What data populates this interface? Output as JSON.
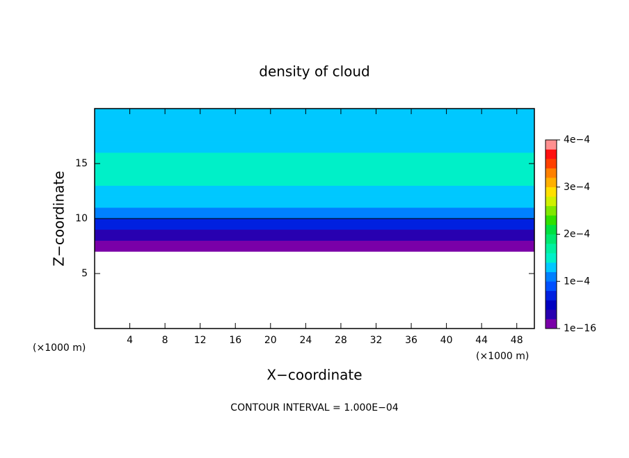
{
  "chart_data": {
    "type": "contour",
    "title": "density of cloud",
    "x_label": "X−coordinate",
    "y_label": "Z−coordinate",
    "unit_labels": [
      "(×1000 m)",
      "(×1000 m)"
    ],
    "annotation": "CONTOUR INTERVAL = 1.000E−04",
    "xlim": [
      0,
      50
    ],
    "xticks": [
      4,
      8,
      12,
      16,
      20,
      24,
      28,
      32,
      36,
      40,
      44,
      48
    ],
    "ylim": [
      0,
      20
    ],
    "yticks": [
      5,
      10,
      15
    ],
    "z_bins": [
      7,
      8,
      9,
      10,
      11,
      12,
      13,
      14,
      15,
      16,
      17,
      18,
      19,
      20
    ],
    "values": [
      2e-05,
      4e-05,
      8e-05,
      0.00011,
      0.000125,
      0.00014,
      0.00015,
      0.00015,
      0.00015,
      0.00014,
      0.00013,
      0.00013,
      0.00013
    ],
    "contour_line_color": "#000000",
    "colorbar": {
      "lim": [
        1e-16,
        0.0004
      ],
      "ticks": [
        {
          "value": 1e-16,
          "label": "1e−16"
        },
        {
          "value": 0.0001,
          "label": "1e−4"
        },
        {
          "value": 0.0002,
          "label": "2e−4"
        },
        {
          "value": 0.0003,
          "label": "3e−4"
        },
        {
          "value": 0.0004,
          "label": "4e−4"
        }
      ],
      "colors": [
        "#7a00a8",
        "#2800b0",
        "#0000c0",
        "#0020e0",
        "#0050ff",
        "#0080ff",
        "#00c8ff",
        "#00f0c8",
        "#00f0a0",
        "#00e870",
        "#00e040",
        "#30e000",
        "#80e800",
        "#d0f000",
        "#ffe000",
        "#ffb000",
        "#ff8000",
        "#ff4000",
        "#ff1010",
        "#ff9090"
      ]
    }
  }
}
